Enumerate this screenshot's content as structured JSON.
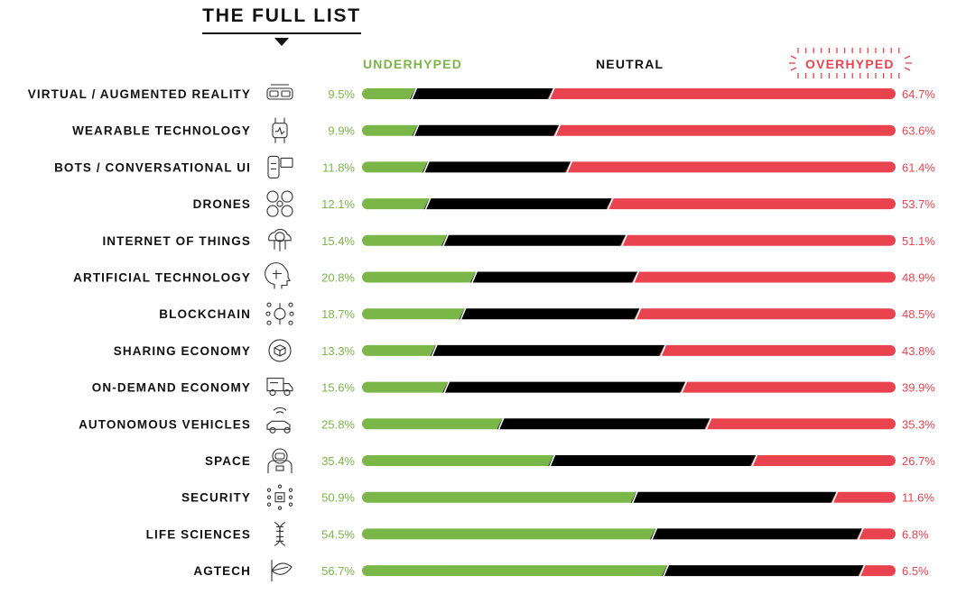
{
  "header": {
    "title": "THE FULL LIST",
    "underhyped": "UNDERHYPED",
    "neutral": "NEUTRAL",
    "overhyped": "OVERHYPED"
  },
  "colors": {
    "underhyped": "#7ab648",
    "neutral": "#000000",
    "overhyped": "#e8434e"
  },
  "chart_data": {
    "type": "bar",
    "stacked": true,
    "orientation": "horizontal",
    "categories": [
      "VIRTUAL / AUGMENTED REALITY",
      "WEARABLE TECHNOLOGY",
      "BOTS / CONVERSATIONAL UI",
      "DRONES",
      "INTERNET OF THINGS",
      "ARTIFICIAL TECHNOLOGY",
      "BLOCKCHAIN",
      "SHARING ECONOMY",
      "ON-DEMAND ECONOMY",
      "AUTONOMOUS VEHICLES",
      "SPACE",
      "SECURITY",
      "LIFE SCIENCES",
      "AGTECH"
    ],
    "icons": [
      "vr-headset-icon",
      "smartwatch-icon",
      "chatbot-icon",
      "drone-icon",
      "cloud-network-icon",
      "ai-head-icon",
      "blockchain-icon",
      "hands-cube-icon",
      "delivery-truck-icon",
      "autonomous-car-icon",
      "astronaut-icon",
      "security-chip-icon",
      "dna-icon",
      "leaf-plant-icon"
    ],
    "series": [
      {
        "name": "UNDERHYPED",
        "values": [
          9.5,
          9.9,
          11.8,
          12.1,
          15.4,
          20.8,
          18.7,
          13.3,
          15.6,
          25.8,
          35.4,
          50.9,
          54.5,
          56.7
        ]
      },
      {
        "name": "NEUTRAL",
        "values": [
          25.8,
          26.5,
          26.8,
          34.2,
          33.5,
          30.3,
          32.8,
          42.9,
          44.5,
          38.9,
          37.9,
          37.5,
          38.7,
          36.8
        ]
      },
      {
        "name": "OVERHYPED",
        "values": [
          64.7,
          63.6,
          61.4,
          53.7,
          51.1,
          48.9,
          48.5,
          43.8,
          39.9,
          35.3,
          26.7,
          11.6,
          6.8,
          6.5
        ]
      }
    ],
    "underhyped_labels": [
      "9.5%",
      "9.9%",
      "11.8%",
      "12.1%",
      "15.4%",
      "20.8%",
      "18.7%",
      "13.3%",
      "15.6%",
      "25.8%",
      "35.4%",
      "50.9%",
      "54.5%",
      "56.7%"
    ],
    "overhyped_labels": [
      "64.7%",
      "63.6%",
      "61.4%",
      "53.7%",
      "51.1%",
      "48.9%",
      "48.5%",
      "43.8%",
      "39.9%",
      "35.3%",
      "26.7%",
      "11.6%",
      "6.8%",
      "6.5%"
    ],
    "xlim": [
      0,
      100
    ]
  }
}
